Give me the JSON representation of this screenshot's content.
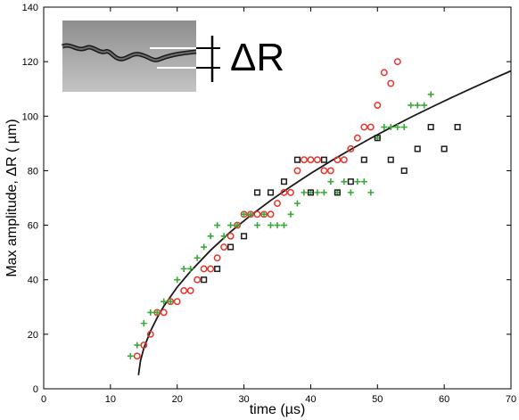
{
  "chart_data": {
    "type": "scatter",
    "xlabel": "time (µs)",
    "ylabel": "Max amplitude, ΔR ( µm)",
    "xlim": [
      0,
      70
    ],
    "ylim": [
      0,
      140
    ],
    "xticks": [
      0,
      10,
      20,
      30,
      40,
      50,
      60,
      70
    ],
    "yticks": [
      0,
      20,
      40,
      60,
      80,
      100,
      120,
      140
    ],
    "grid": false,
    "legend": "none",
    "inset_annotation": "ΔR",
    "series": [
      {
        "marker": "circle",
        "color": "#e8332a",
        "points": [
          [
            14,
            12
          ],
          [
            15,
            16
          ],
          [
            16,
            20
          ],
          [
            17,
            28
          ],
          [
            18,
            28
          ],
          [
            19,
            32
          ],
          [
            20,
            32
          ],
          [
            21,
            36
          ],
          [
            22,
            36
          ],
          [
            23,
            40
          ],
          [
            24,
            44
          ],
          [
            25,
            44
          ],
          [
            26,
            48
          ],
          [
            27,
            52
          ],
          [
            28,
            56
          ],
          [
            29,
            60
          ],
          [
            30,
            64
          ],
          [
            31,
            64
          ],
          [
            32,
            64
          ],
          [
            33,
            64
          ],
          [
            34,
            64
          ],
          [
            35,
            68
          ],
          [
            36,
            72
          ],
          [
            37,
            72
          ],
          [
            38,
            80
          ],
          [
            39,
            84
          ],
          [
            40,
            84
          ],
          [
            41,
            84
          ],
          [
            42,
            80
          ],
          [
            43,
            80
          ],
          [
            44,
            84
          ],
          [
            45,
            84
          ],
          [
            46,
            88
          ],
          [
            47,
            92
          ],
          [
            48,
            96
          ],
          [
            49,
            96
          ],
          [
            50,
            104
          ],
          [
            51,
            116
          ],
          [
            52,
            112
          ],
          [
            53,
            120
          ]
        ]
      },
      {
        "marker": "plus",
        "color": "#3aa83a",
        "points": [
          [
            13,
            12
          ],
          [
            14,
            16
          ],
          [
            15,
            24
          ],
          [
            16,
            28
          ],
          [
            17,
            28
          ],
          [
            18,
            32
          ],
          [
            19,
            32
          ],
          [
            20,
            40
          ],
          [
            21,
            44
          ],
          [
            22,
            44
          ],
          [
            23,
            48
          ],
          [
            24,
            52
          ],
          [
            25,
            56
          ],
          [
            26,
            60
          ],
          [
            27,
            56
          ],
          [
            28,
            60
          ],
          [
            29,
            60
          ],
          [
            30,
            64
          ],
          [
            31,
            64
          ],
          [
            32,
            60
          ],
          [
            33,
            64
          ],
          [
            34,
            60
          ],
          [
            35,
            60
          ],
          [
            36,
            60
          ],
          [
            37,
            64
          ],
          [
            38,
            68
          ],
          [
            39,
            72
          ],
          [
            40,
            72
          ],
          [
            41,
            72
          ],
          [
            42,
            72
          ],
          [
            43,
            76
          ],
          [
            44,
            72
          ],
          [
            45,
            76
          ],
          [
            46,
            72
          ],
          [
            47,
            76
          ],
          [
            48,
            76
          ],
          [
            49,
            72
          ],
          [
            50,
            92
          ],
          [
            51,
            96
          ],
          [
            52,
            96
          ],
          [
            53,
            96
          ],
          [
            54,
            96
          ],
          [
            55,
            104
          ],
          [
            56,
            104
          ],
          [
            57,
            104
          ],
          [
            58,
            108
          ]
        ]
      },
      {
        "marker": "square",
        "color": "#1e1e1e",
        "points": [
          [
            24,
            40
          ],
          [
            26,
            44
          ],
          [
            28,
            52
          ],
          [
            30,
            56
          ],
          [
            32,
            72
          ],
          [
            34,
            72
          ],
          [
            36,
            76
          ],
          [
            38,
            84
          ],
          [
            40,
            72
          ],
          [
            42,
            84
          ],
          [
            44,
            72
          ],
          [
            46,
            76
          ],
          [
            48,
            84
          ],
          [
            50,
            92
          ],
          [
            52,
            84
          ],
          [
            54,
            80
          ],
          [
            56,
            88
          ],
          [
            58,
            96
          ],
          [
            60,
            88
          ],
          [
            62,
            96
          ]
        ]
      }
    ],
    "fit_curve": {
      "color": "#1a1a1a",
      "points": [
        [
          14.2,
          5
        ],
        [
          14.5,
          10.2
        ],
        [
          15,
          14.9
        ],
        [
          16,
          21.2
        ],
        [
          17,
          26.1
        ],
        [
          18,
          30.3
        ],
        [
          20,
          37.3
        ],
        [
          22,
          43.1
        ],
        [
          25,
          50.8
        ],
        [
          28,
          57.6
        ],
        [
          31,
          63.6
        ],
        [
          34,
          69.1
        ],
        [
          37,
          74.2
        ],
        [
          40,
          79.0
        ],
        [
          43,
          83.5
        ],
        [
          46,
          87.8
        ],
        [
          49,
          91.9
        ],
        [
          52,
          95.8
        ],
        [
          55,
          99.6
        ],
        [
          58,
          103.2
        ],
        [
          61,
          106.7
        ],
        [
          64,
          110.1
        ],
        [
          67,
          113.4
        ],
        [
          70,
          116.6
        ]
      ]
    }
  }
}
